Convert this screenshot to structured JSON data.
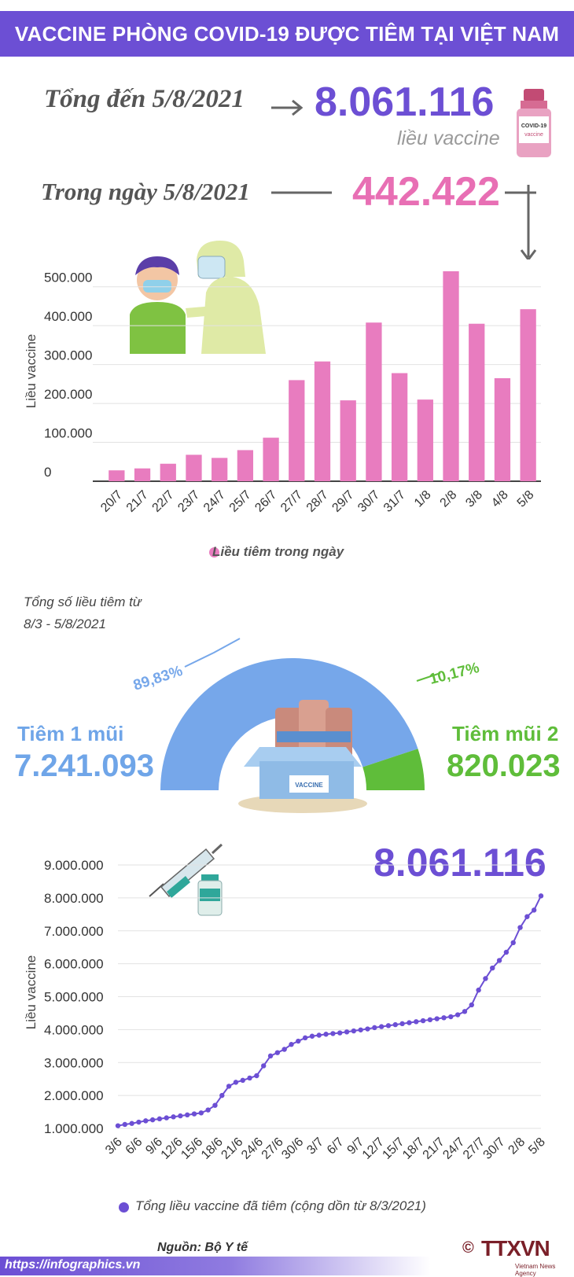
{
  "header": {
    "title": "VACCINE PHÒNG COVID-19 ĐƯỢC TIÊM TẠI VIỆT NAM"
  },
  "summary": {
    "total_label": "Tổng đến 5/8/2021",
    "total_value": "8.061.116",
    "total_unit": "liều vaccine",
    "day_label": "Trong ngày 5/8/2021",
    "day_value": "442.422"
  },
  "colors": {
    "purple": "#6c4fd4",
    "pink": "#e87cbf",
    "blue": "#76a7ea",
    "green": "#5fbd3a"
  },
  "chart_data": [
    {
      "type": "bar",
      "ylabel": "Liều vaccine",
      "ylim": [
        0,
        550000
      ],
      "yticks": [
        0,
        100000,
        200000,
        300000,
        400000,
        500000
      ],
      "ytick_labels": [
        "0",
        "100.000",
        "200.000",
        "300.000",
        "400.000",
        "500.000"
      ],
      "categories": [
        "20/7",
        "21/7",
        "22/7",
        "23/7",
        "24/7",
        "25/7",
        "26/7",
        "27/7",
        "28/7",
        "29/7",
        "30/7",
        "31/7",
        "1/8",
        "2/8",
        "3/8",
        "4/8",
        "5/8"
      ],
      "series": [
        {
          "name": "Liều tiêm trong ngày",
          "values": [
            28000,
            33000,
            45000,
            68000,
            60000,
            80000,
            112000,
            260000,
            308000,
            208000,
            408000,
            278000,
            210000,
            540000,
            405000,
            265000,
            442422
          ]
        }
      ],
      "grid": true,
      "legend": "bottom"
    },
    {
      "type": "pie",
      "title": "Tổng số liều tiêm từ 8/3 - 5/8/2021",
      "slices": [
        {
          "name": "Tiêm 1 mũi",
          "value": 7241093,
          "percent_label": "89,83%",
          "percent": 89.83
        },
        {
          "name": "Tiêm mũi 2",
          "value": 820023,
          "percent_label": "10,17%",
          "percent": 10.17
        }
      ],
      "value_labels": [
        "7.241.093",
        "820.023"
      ],
      "shape": "semi-donut"
    },
    {
      "type": "line",
      "ylabel": "Liều vaccine",
      "ylim": [
        1000000,
        9000000
      ],
      "yticks": [
        1000000,
        2000000,
        3000000,
        4000000,
        5000000,
        6000000,
        7000000,
        8000000,
        9000000
      ],
      "ytick_labels": [
        "1.000.000",
        "2.000.000",
        "3.000.000",
        "4.000.000",
        "5.000.000",
        "6.000.000",
        "7.000.000",
        "8.000.000",
        "9.000.000"
      ],
      "xtick_labels": [
        "3/6",
        "6/6",
        "9/6",
        "12/6",
        "15/6",
        "18/6",
        "21/6",
        "24/6",
        "27/6",
        "30/6",
        "3/7",
        "6/7",
        "9/7",
        "12/7",
        "15/7",
        "18/7",
        "21/7",
        "24/7",
        "27/7",
        "30/7",
        "2/8",
        "5/8"
      ],
      "series": [
        {
          "name": "Tổng liều vaccine đã tiêm (cộng dồn từ 8/3/2021)",
          "values": [
            1080000,
            1120000,
            1150000,
            1190000,
            1230000,
            1260000,
            1290000,
            1320000,
            1350000,
            1380000,
            1410000,
            1440000,
            1470000,
            1560000,
            1700000,
            2000000,
            2280000,
            2400000,
            2460000,
            2530000,
            2600000,
            2900000,
            3200000,
            3300000,
            3400000,
            3550000,
            3650000,
            3750000,
            3800000,
            3830000,
            3860000,
            3880000,
            3900000,
            3930000,
            3960000,
            3990000,
            4020000,
            4060000,
            4090000,
            4120000,
            4150000,
            4180000,
            4210000,
            4240000,
            4270000,
            4300000,
            4330000,
            4360000,
            4390000,
            4450000,
            4550000,
            4750000,
            5200000,
            5550000,
            5870000,
            6100000,
            6350000,
            6640000,
            7100000,
            7430000,
            7630000,
            8061116
          ]
        }
      ],
      "highlight_label": "8.061.116",
      "legend": "bottom"
    }
  ],
  "footer": {
    "source": "Nguồn: Bộ Y tế",
    "url": "https://infographics.vn",
    "logo": "TTXVN",
    "copyright": "©",
    "logo_sub": "Vietnam News Agency"
  }
}
